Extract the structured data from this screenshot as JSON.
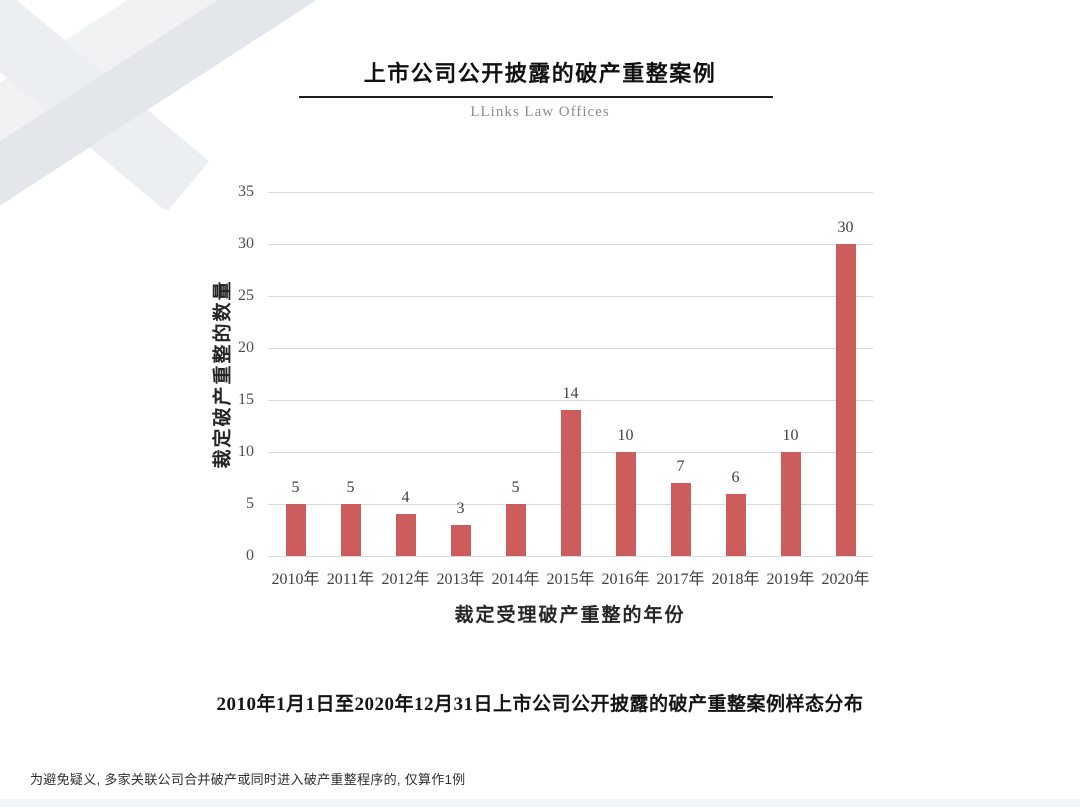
{
  "page": {
    "title": "上市公司公开披露的破产重整案例",
    "subtitle": "LLinks Law Offices",
    "caption": "2010年1月1日至2020年12月31日上市公司公开披露的破产重整案例样态分布",
    "footnote": "为避免疑义, 多家关联公司合并破产或同时进入破产重整程序的, 仅算作1例"
  },
  "chart_data": {
    "type": "bar",
    "title": "上市公司公开披露的破产重整案例",
    "categories": [
      "2010年",
      "2011年",
      "2012年",
      "2013年",
      "2014年",
      "2015年",
      "2016年",
      "2017年",
      "2018年",
      "2019年",
      "2020年"
    ],
    "values": [
      5,
      5,
      4,
      3,
      5,
      14,
      10,
      7,
      6,
      10,
      30
    ],
    "xlabel": "裁定受理破产重整的年份",
    "ylabel": "裁定破产重整的数量",
    "ylim": [
      0,
      35
    ],
    "yticks": [
      0,
      5,
      10,
      15,
      20,
      25,
      30,
      35
    ],
    "grid": true,
    "legend": false,
    "data_labels": true,
    "bar_color": "#cd5c5c",
    "gridline_color": "#d9d9d9"
  }
}
